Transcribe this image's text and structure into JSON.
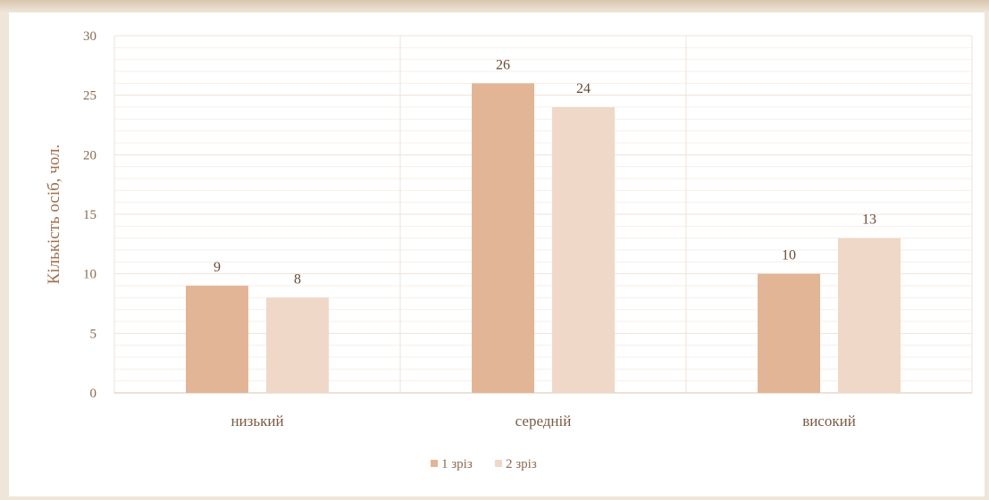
{
  "chart_data": {
    "type": "bar",
    "categories": [
      "низький",
      "середній",
      "високий"
    ],
    "series": [
      {
        "name": "1 зріз",
        "values": [
          9,
          26,
          10
        ],
        "color": "#e2b596"
      },
      {
        "name": "2 зріз",
        "values": [
          8,
          24,
          13
        ],
        "color": "#efd8c7"
      }
    ],
    "title": "",
    "xlabel": "",
    "ylabel": "Кількість осіб, чол.",
    "ylim": [
      0,
      30
    ],
    "yticks": [
      0,
      5,
      10,
      15,
      20,
      25,
      30
    ],
    "grid": true,
    "legend": "bottom"
  }
}
